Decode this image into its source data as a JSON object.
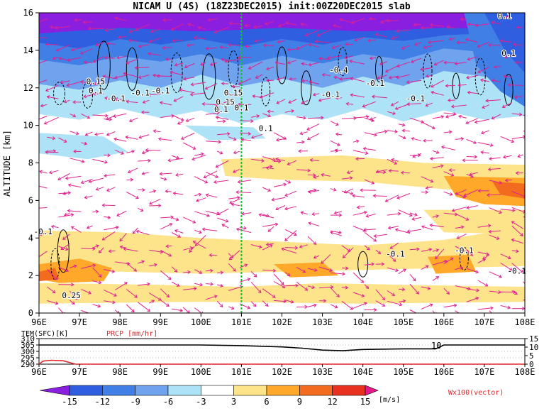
{
  "chart_data": {
    "type": "contourf",
    "title": "NICAM U (4S) (18Z23DEC2015) init:00Z20DEC2015 slab",
    "ylabel": "ALTITUDE [km]",
    "x_ticks": [
      "96E",
      "97E",
      "98E",
      "99E",
      "100E",
      "101E",
      "102E",
      "103E",
      "104E",
      "105E",
      "106E",
      "107E",
      "108E"
    ],
    "y_ticks": [
      "0",
      "2",
      "4",
      "6",
      "8",
      "10",
      "12",
      "14",
      "16"
    ],
    "xlim": [
      96,
      108
    ],
    "ylim": [
      0,
      16
    ],
    "marker_line_x": 101,
    "contour_labels": [
      {
        "text": "0.1",
        "x": 107.5,
        "y": 15.7
      },
      {
        "text": "0.1",
        "x": 107.6,
        "y": 13.7
      },
      {
        "text": "-0.4",
        "x": 103.4,
        "y": 12.8
      },
      {
        "text": "-0.1",
        "x": 104.3,
        "y": 12.1
      },
      {
        "text": "-0.1",
        "x": 103.2,
        "y": 11.5
      },
      {
        "text": "-0.1",
        "x": 105.3,
        "y": 11.3
      },
      {
        "text": "0.15",
        "x": 97.4,
        "y": 12.2
      },
      {
        "text": "0.1",
        "x": 97.4,
        "y": 11.7
      },
      {
        "text": "-0.1",
        "x": 97.9,
        "y": 11.3
      },
      {
        "text": "-0.1",
        "x": 98.5,
        "y": 11.6
      },
      {
        "text": "-0.1",
        "x": 99.0,
        "y": 11.7
      },
      {
        "text": "0.15",
        "x": 100.6,
        "y": 11.1
      },
      {
        "text": "0.1",
        "x": 100.5,
        "y": 10.7
      },
      {
        "text": "0.15",
        "x": 100.8,
        "y": 11.6
      },
      {
        "text": "0.1",
        "x": 101.0,
        "y": 10.8
      },
      {
        "text": "0.1",
        "x": 101.6,
        "y": 9.7
      },
      {
        "text": "-0.1",
        "x": 96.1,
        "y": 4.2
      },
      {
        "text": "0.25",
        "x": 96.8,
        "y": 0.8
      },
      {
        "text": "-0.1",
        "x": 104.8,
        "y": 3.0
      },
      {
        "text": "-0.1",
        "x": 106.5,
        "y": 3.2
      },
      {
        "text": "-0.1",
        "x": 107.8,
        "y": 2.1
      }
    ],
    "bottom_panel": {
      "left_label": "TEM(SFC)[K]",
      "right_label": "PRCP [mm/hr]",
      "left_ticks": [
        "310",
        "305",
        "300",
        "295",
        "290"
      ],
      "right_ticks": [
        "15",
        "10",
        "5",
        "0"
      ],
      "annotation": "10",
      "temperature": [
        [
          96,
          305
        ],
        [
          100,
          305
        ],
        [
          101,
          304.5
        ],
        [
          101.5,
          304
        ],
        [
          102,
          303.5
        ],
        [
          102.5,
          302.5
        ],
        [
          103,
          301
        ],
        [
          103.5,
          300.5
        ],
        [
          104,
          301.5
        ],
        [
          105,
          302
        ],
        [
          105.8,
          302
        ],
        [
          106,
          305
        ],
        [
          108,
          305
        ]
      ],
      "precip": [
        [
          96,
          0
        ],
        [
          96.1,
          1.8
        ],
        [
          96.3,
          2.3
        ],
        [
          96.6,
          2.0
        ],
        [
          96.9,
          0
        ],
        [
          108,
          0
        ]
      ]
    },
    "colorbar": {
      "levels": [
        "-15",
        "-12",
        "-9",
        "-6",
        "-3",
        "3",
        "6",
        "9",
        "12",
        "15"
      ],
      "unit": "[m/s]",
      "colors": [
        "#8a1fe0",
        "#2f5fe0",
        "#3f7fe6",
        "#6fa3ee",
        "#aee3f7",
        "#ffffff",
        "#fde48b",
        "#ffa82a",
        "#f36b1f",
        "#e8321f",
        "#b40d10",
        "#e8198e"
      ]
    },
    "vector_label": "Wx100(vector)"
  }
}
